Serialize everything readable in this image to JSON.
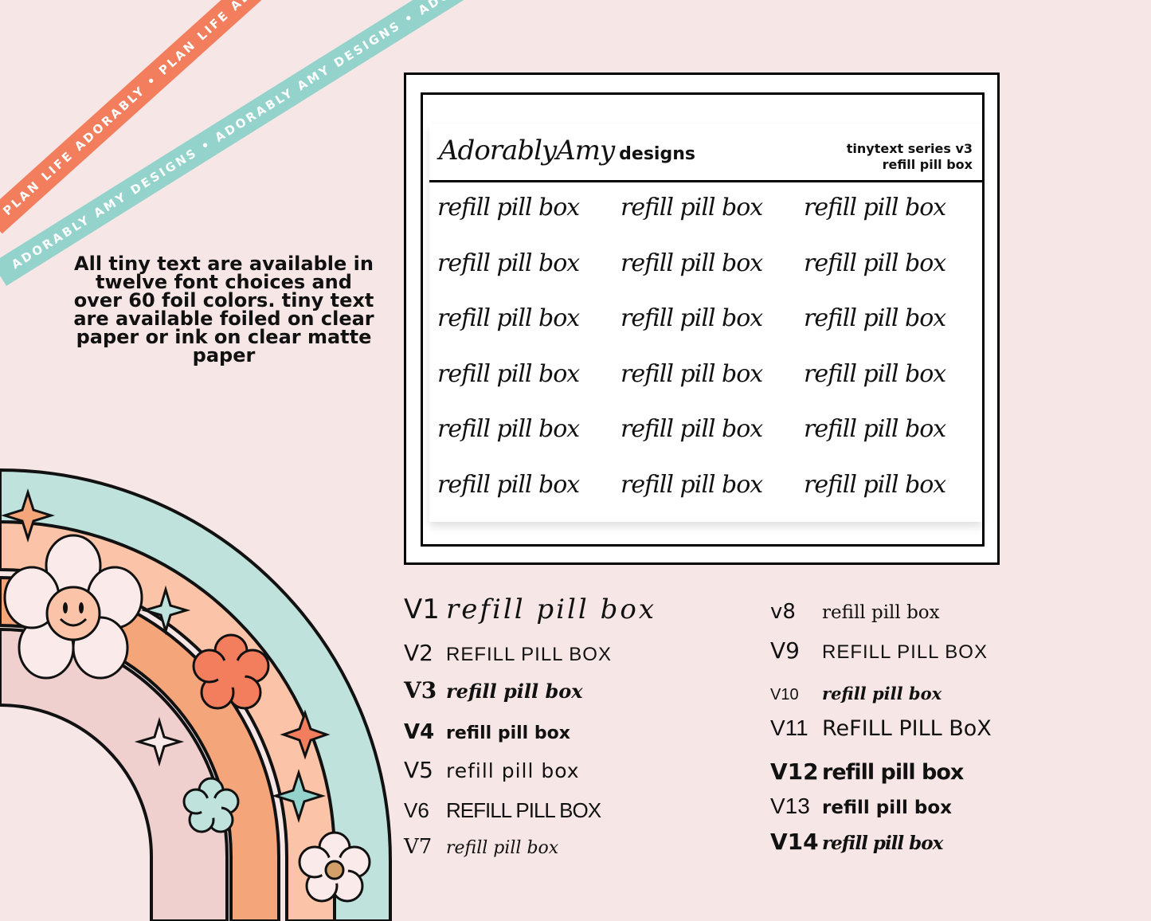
{
  "ribbons": {
    "orange_text": "PLAN LIFE ADORABLY • PLAN LIFE ADORABLY • PLAN LIFE ADORABLY •",
    "teal_text": "ADORABLY AMY DESIGNS • ADORABLY AMY DESIGNS • ADORABLY AMY DESIGNS •"
  },
  "info": {
    "text": "All tiny text are available in twelve font choices and over 60 foil colors.  tiny text are available foiled on clear paper or ink on clear matte paper"
  },
  "sheet": {
    "brand": "AdorablyAmy",
    "brand_suffix": "designs",
    "series_line1": "tinytext series v3",
    "series_line2": "refill pill box",
    "stickers": [
      "refill pill box",
      "refill pill box",
      "refill pill box",
      "refill pill box",
      "refill pill box",
      "refill pill box",
      "refill pill box",
      "refill pill box",
      "refill pill box",
      "refill pill box",
      "refill pill box",
      "refill pill box",
      "refill pill box",
      "refill pill box",
      "refill pill box",
      "refill pill box",
      "refill pill box",
      "refill pill box"
    ]
  },
  "variants_left": [
    {
      "label": "V1",
      "text": "refill pill box"
    },
    {
      "label": "V2",
      "text": "REFILL PILL BOX"
    },
    {
      "label": "V3",
      "text": "refill pill box"
    },
    {
      "label": "V4",
      "text": "refill pill box"
    },
    {
      "label": "V5",
      "text": "refill pill box"
    },
    {
      "label": "V6",
      "text": "REFILL PILL BOX"
    },
    {
      "label": "V7",
      "text": "refill pill box"
    }
  ],
  "variants_right": [
    {
      "label": "v8",
      "text": "refill pill box"
    },
    {
      "label": "V9",
      "text": "REFILL PILL BOX"
    },
    {
      "label": "V10",
      "text": "refill pill box"
    },
    {
      "label": "V11",
      "text": "ReFILL PILL BoX"
    },
    {
      "label": "V12",
      "text": "refill pill box"
    },
    {
      "label": "V13",
      "text": "refill pill box"
    },
    {
      "label": "V14",
      "text": "refill pill box"
    }
  ],
  "colors": {
    "background": "#f7e6e6",
    "orange": "#f27e5e",
    "teal": "#93d3cb",
    "peach": "#fbc4a8",
    "apricot": "#f5a57a",
    "blush": "#f0cfcf"
  }
}
